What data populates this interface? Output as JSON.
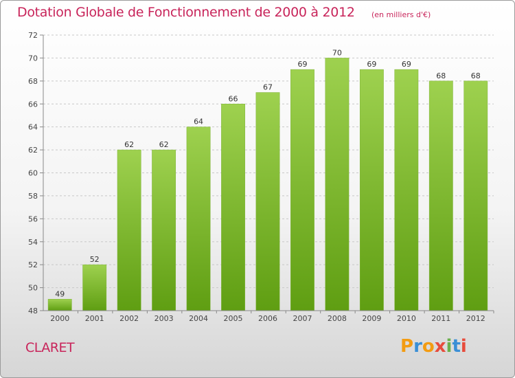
{
  "title": "Dotation Globale de Fonctionnement de 2000 à 2012",
  "unit_note": "(en milliers d'€)",
  "town": "CLARET",
  "brand": {
    "letters": [
      "P",
      "r",
      "o",
      "x",
      "i",
      "t",
      "i"
    ],
    "colors": [
      "#f39c12",
      "#3a8fd6",
      "#f39c12",
      "#e74c3c",
      "#6ab04c",
      "#3a8fd6",
      "#e74c3c"
    ]
  },
  "colors": {
    "accent": "#c8245a",
    "bar_top": "#9ed14f",
    "bar_bottom": "#5f9e12"
  },
  "chart_data": {
    "type": "bar",
    "title": "Dotation Globale de Fonctionnement de 2000 à 2012",
    "xlabel": "",
    "ylabel": "",
    "categories": [
      "2000",
      "2001",
      "2002",
      "2003",
      "2004",
      "2005",
      "2006",
      "2007",
      "2008",
      "2009",
      "2010",
      "2011",
      "2012"
    ],
    "values": [
      49,
      52,
      62,
      62,
      64,
      66,
      67,
      69,
      70,
      69,
      69,
      68,
      68
    ],
    "ylim": [
      48,
      72
    ],
    "yticks": [
      48,
      50,
      52,
      54,
      56,
      58,
      60,
      62,
      64,
      66,
      68,
      70,
      72
    ],
    "grid": true
  }
}
